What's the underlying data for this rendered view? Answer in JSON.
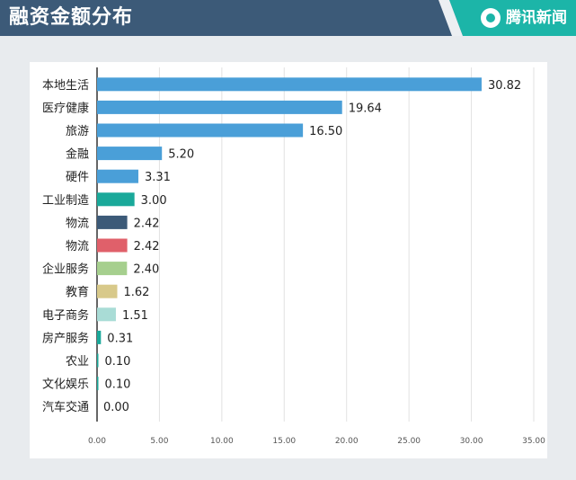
{
  "header": {
    "title": "融资金额分布",
    "brand": "腾讯新闻"
  },
  "colors": {
    "header_bg": "#3c5a78",
    "brand_bg": "#1cb5a8"
  },
  "chart_data": {
    "type": "bar",
    "orientation": "horizontal",
    "title": "融资金额分布",
    "xlim": [
      0,
      35
    ],
    "xticks": [
      "0.00",
      "5.00",
      "10.00",
      "15.00",
      "20.00",
      "25.00",
      "30.00",
      "35.00"
    ],
    "grid": true,
    "categories": [
      "本地生活",
      "医疗健康",
      "旅游",
      "金融",
      "硬件",
      "工业制造",
      "物流",
      "物流",
      "企业服务",
      "教育",
      "电子商务",
      "房产服务",
      "农业",
      "文化娱乐",
      "汽车交通"
    ],
    "values": [
      30.82,
      19.64,
      16.5,
      5.2,
      3.31,
      3.0,
      2.42,
      2.42,
      2.4,
      1.62,
      1.51,
      0.31,
      0.1,
      0.1,
      0.0
    ],
    "value_labels": [
      "30.82",
      "19.64",
      "16.50",
      "5.20",
      "3.31",
      "3.00",
      "2.42",
      "2.42",
      "2.40",
      "1.62",
      "1.51",
      "0.31",
      "0.10",
      "0.10",
      "0.00"
    ],
    "bar_colors": [
      "#4a9fd8",
      "#4a9fd8",
      "#4a9fd8",
      "#4a9fd8",
      "#4a9fd8",
      "#1aa99a",
      "#3c5a78",
      "#e0606a",
      "#a6cf8e",
      "#d8c98a",
      "#a9dcd6",
      "#1aa99a",
      "#1aa99a",
      "#1aa99a",
      "#1aa99a"
    ]
  }
}
